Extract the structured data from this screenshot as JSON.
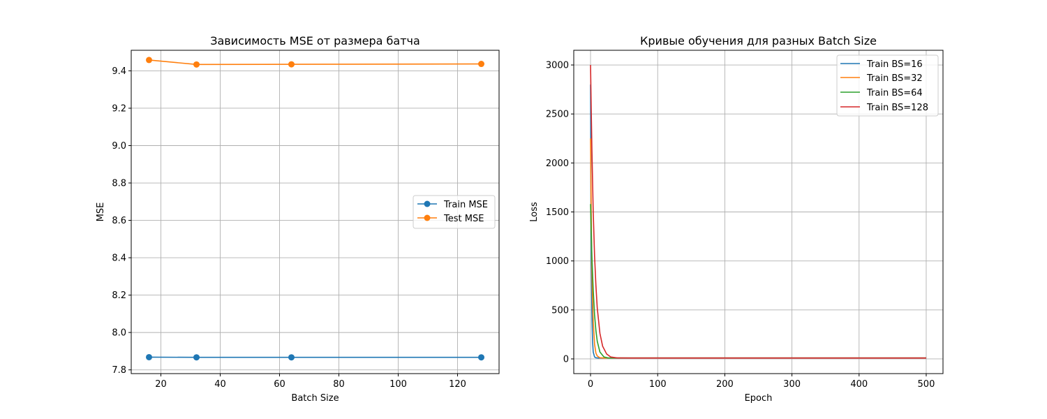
{
  "chart_data": [
    {
      "type": "line",
      "title": "Зависимость MSE от размера батча",
      "xlabel": "Batch Size",
      "ylabel": "MSE",
      "x": [
        16,
        32,
        64,
        128
      ],
      "xlim": [
        10,
        134
      ],
      "ylim": [
        7.78,
        9.51
      ],
      "xticks": [
        20,
        40,
        60,
        80,
        100,
        120
      ],
      "yticks": [
        7.8,
        8.0,
        8.2,
        8.4,
        8.6,
        8.8,
        9.0,
        9.2,
        9.4
      ],
      "tick_decimals": 1,
      "grid": true,
      "legend_position": "center-right",
      "markers": true,
      "series": [
        {
          "name": "Train MSE",
          "color": "#1f77b4",
          "values": [
            7.868,
            7.867,
            7.867,
            7.867
          ]
        },
        {
          "name": "Test MSE",
          "color": "#ff7f0e",
          "values": [
            9.458,
            9.434,
            9.435,
            9.437
          ]
        }
      ]
    },
    {
      "type": "line",
      "title": "Кривые обучения для разных Batch Size",
      "xlabel": "Epoch",
      "ylabel": "Loss",
      "xlim": [
        -25,
        525
      ],
      "ylim": [
        -150,
        3150
      ],
      "xticks": [
        0,
        100,
        200,
        300,
        400,
        500
      ],
      "yticks": [
        0,
        500,
        1000,
        1500,
        2000,
        2500,
        3000
      ],
      "tick_decimals": 0,
      "grid": true,
      "legend_position": "top-right",
      "markers": false,
      "series": [
        {
          "name": "Train BS=16",
          "color": "#1f77b4",
          "x": [
            0,
            1,
            2,
            3,
            4,
            6,
            8,
            12,
            20,
            40,
            100,
            200,
            300,
            400,
            500
          ],
          "values": [
            2800,
            1200,
            480,
            180,
            70,
            20,
            12,
            9,
            9,
            9,
            9,
            9,
            9,
            9,
            9
          ]
        },
        {
          "name": "Train BS=32",
          "color": "#ff7f0e",
          "x": [
            0,
            1,
            2,
            3,
            4,
            6,
            8,
            10,
            14,
            20,
            40,
            100,
            200,
            300,
            400,
            500
          ],
          "values": [
            2250,
            1500,
            950,
            600,
            380,
            150,
            60,
            30,
            12,
            9,
            9,
            9,
            9,
            9,
            9,
            9
          ]
        },
        {
          "name": "Train BS=64",
          "color": "#2ca02c",
          "x": [
            0,
            1,
            2,
            4,
            6,
            8,
            10,
            14,
            20,
            26,
            40,
            100,
            200,
            300,
            400,
            500
          ],
          "values": [
            1580,
            1300,
            1050,
            700,
            450,
            290,
            180,
            70,
            20,
            10,
            9,
            9,
            9,
            9,
            9,
            9
          ]
        },
        {
          "name": "Train BS=128",
          "color": "#d62728",
          "x": [
            0,
            1,
            2,
            4,
            6,
            8,
            10,
            14,
            18,
            24,
            30,
            40,
            60,
            100,
            200,
            300,
            400,
            500
          ],
          "values": [
            3000,
            2550,
            2150,
            1500,
            1050,
            750,
            520,
            260,
            130,
            50,
            20,
            10,
            9,
            9,
            9,
            9,
            9,
            9
          ]
        }
      ]
    }
  ]
}
